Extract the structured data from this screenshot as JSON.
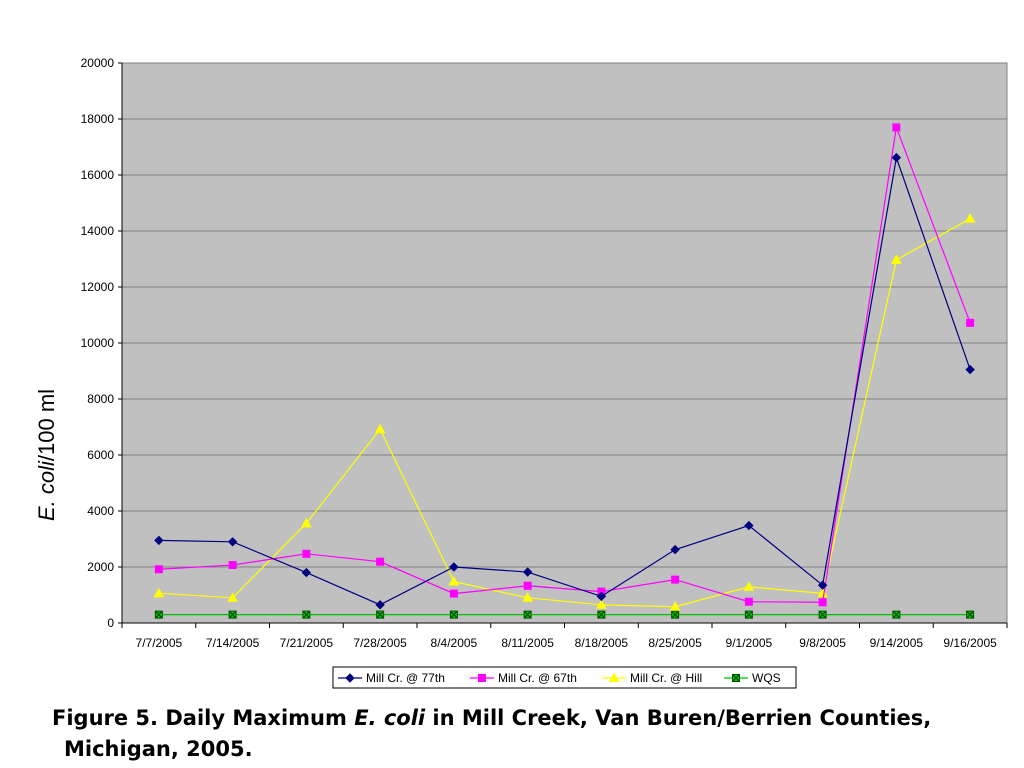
{
  "caption": {
    "part1": "Figure 5. Daily Maximum ",
    "species": "E. coli",
    "part2": " in Mill Creek, Van Buren/Berrien Counties,",
    "line2": "Michigan, 2005."
  },
  "chart_data": {
    "type": "line",
    "title": "",
    "xlabel": "",
    "ylabel_italic": "E. coli",
    "ylabel_rest": "/100 ml",
    "ylim": [
      0,
      20000
    ],
    "yticks": [
      0,
      2000,
      4000,
      6000,
      8000,
      10000,
      12000,
      14000,
      16000,
      18000,
      20000
    ],
    "grid": "horizontal",
    "legend_position": "bottom",
    "plot_background": "#c0c0c0",
    "categories": [
      "7/7/2005",
      "7/14/2005",
      "7/21/2005",
      "7/28/2005",
      "8/4/2005",
      "8/11/2005",
      "8/18/2005",
      "8/25/2005",
      "9/1/2005",
      "9/8/2005",
      "9/14/2005",
      "9/16/2005"
    ],
    "series": [
      {
        "name": "Mill Cr. @ 77th",
        "color": "#000080",
        "marker": "diamond",
        "values": [
          2950,
          2900,
          1800,
          650,
          2000,
          1820,
          950,
          2620,
          3480,
          1350,
          16620,
          9050
        ]
      },
      {
        "name": "Mill Cr. @ 67th",
        "color": "#ff00ff",
        "marker": "square",
        "values": [
          1920,
          2070,
          2470,
          2190,
          1050,
          1330,
          1120,
          1550,
          760,
          740,
          17700,
          10720
        ]
      },
      {
        "name": "Mill Cr. @ Hill",
        "color": "#ffff00",
        "marker": "triangle",
        "values": [
          1060,
          900,
          3560,
          6920,
          1480,
          900,
          650,
          580,
          1290,
          1060,
          12970,
          14440
        ]
      },
      {
        "name": "WQS",
        "color": "#00c000",
        "marker": "x-square",
        "values": [
          300,
          300,
          300,
          300,
          300,
          300,
          300,
          300,
          300,
          300,
          300,
          300
        ]
      }
    ]
  }
}
